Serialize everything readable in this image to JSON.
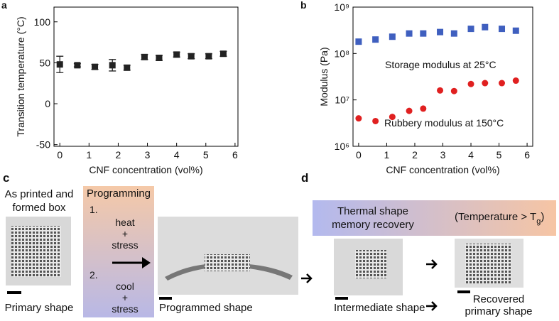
{
  "chart_data": [
    {
      "type": "scatter",
      "panel": "a",
      "x_label": "CNF concentration (vol%)",
      "y_label": "Transition temperature (°C)",
      "x": [
        0,
        0.6,
        1.2,
        1.8,
        2.3,
        2.9,
        3.4,
        4.0,
        4.5,
        5.1,
        5.6
      ],
      "values": [
        48,
        47,
        45,
        47,
        44,
        57,
        56,
        60,
        58,
        58,
        61
      ],
      "errors": [
        10,
        2,
        3,
        7,
        3,
        3,
        3,
        3,
        3,
        3,
        3
      ],
      "color": "#222222",
      "xlim": [
        -0.2,
        6.1
      ],
      "xticks": [
        0,
        1,
        2,
        3,
        4,
        5,
        6
      ],
      "ylim": [
        -52,
        118
      ],
      "yticks": [
        -50,
        0,
        50,
        100
      ]
    },
    {
      "type": "scatter",
      "panel": "b",
      "log_y": true,
      "x_label": "CNF concentration (vol%)",
      "y_label": "Modulus (Pa)",
      "x": [
        0,
        0.6,
        1.2,
        1.8,
        2.3,
        2.9,
        3.4,
        4.0,
        4.5,
        5.1,
        5.6
      ],
      "series": [
        {
          "name": "Storage modulus at 25°C",
          "color": "#3f5fbf",
          "marker": "square",
          "values": [
            180000000,
            200000000,
            230000000,
            270000000,
            270000000,
            290000000,
            270000000,
            340000000,
            370000000,
            340000000,
            310000000
          ]
        },
        {
          "name": "Rubbery modulus at 150°C",
          "color": "#e02020",
          "marker": "circle",
          "values": [
            4000000,
            3500000,
            4300000,
            5800000,
            6500000,
            16000000,
            15500000,
            22000000,
            23000000,
            23000000,
            26000000
          ]
        }
      ],
      "xlim": [
        -0.2,
        6.2
      ],
      "xticks": [
        0,
        1,
        2,
        3,
        4,
        5,
        6
      ],
      "ylim": [
        1000000,
        1000000000
      ],
      "yticks": [
        {
          "value": 1000000,
          "label": "10⁶"
        },
        {
          "value": 10000000,
          "label": "10⁷"
        },
        {
          "value": 100000000,
          "label": "10⁸"
        },
        {
          "value": 1000000000,
          "label": "10⁹"
        }
      ]
    }
  ],
  "panel_c": {
    "letter": "c",
    "as_printed": [
      "As printed and",
      "formed box"
    ],
    "programming": "Programming",
    "step1_num": "1.",
    "step1": [
      "heat",
      "+",
      "stress"
    ],
    "step2_num": "2.",
    "step2": [
      "cool",
      "+",
      "stress"
    ],
    "primary": "Primary shape",
    "programmed": "Programmed shape"
  },
  "panel_d": {
    "letter": "d",
    "recovery": [
      "Thermal shape",
      "memory recovery"
    ],
    "condition": "(Temperature > T",
    "condition_sub": "g",
    "condition_end": ")",
    "intermediate": "Intermediate shape",
    "recovered": [
      "Recovered",
      "primary shape"
    ]
  }
}
